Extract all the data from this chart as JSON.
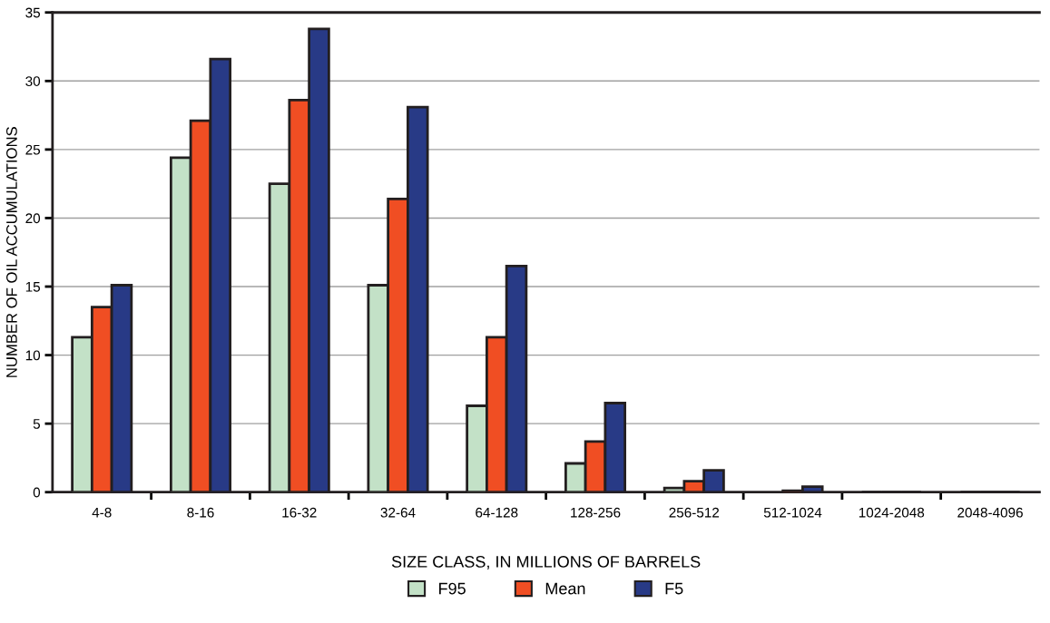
{
  "chart_data": {
    "type": "bar",
    "xlabel": "SIZE CLASS, IN MILLIONS OF BARRELS",
    "ylabel": "NUMBER OF OIL ACCUMULATIONS",
    "categories": [
      "4-8",
      "8-16",
      "16-32",
      "32-64",
      "64-128",
      "128-256",
      "256-512",
      "512-1024",
      "1024-2048",
      "2048-4096"
    ],
    "series": [
      {
        "name": "F95",
        "color": "#c3e1c7",
        "values": [
          11.3,
          24.4,
          22.5,
          15.1,
          6.3,
          2.1,
          0.3,
          null,
          0,
          0
        ]
      },
      {
        "name": "Mean",
        "color": "#f04e23",
        "values": [
          13.5,
          27.1,
          28.6,
          21.4,
          11.3,
          3.7,
          0.8,
          0.1,
          0,
          0
        ]
      },
      {
        "name": "F5",
        "color": "#283a86",
        "values": [
          15.1,
          31.6,
          33.8,
          28.1,
          16.5,
          6.5,
          1.6,
          0.4,
          0,
          0
        ]
      }
    ],
    "ylim": [
      0,
      35
    ],
    "yticks": [
      0,
      5,
      10,
      15,
      20,
      25,
      30,
      35
    ],
    "grid": "y",
    "legend": "bottom"
  }
}
